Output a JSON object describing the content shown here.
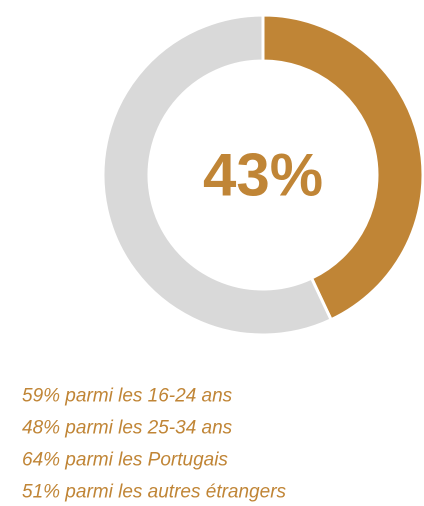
{
  "chart_data": {
    "type": "donut",
    "categories": [
      null,
      null
    ],
    "values": [
      43,
      57
    ],
    "value_labels": [
      "43%",
      null
    ],
    "colors": [
      "#c08536",
      "#d9d9d9"
    ],
    "label_color": "#c08536",
    "annotations": [
      "59% parmi les 16-24 ans",
      "48% parmi les 25-34 ans",
      "64% parmi les Portugais",
      "51% parmi les autres étrangers"
    ]
  }
}
